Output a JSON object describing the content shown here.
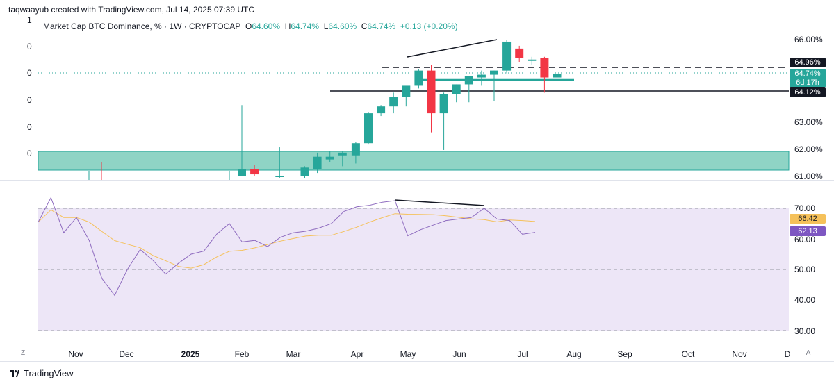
{
  "header": {
    "text": "taqwaayub created with TradingView.com, Jul 14, 2025 07:39 UTC"
  },
  "legend": {
    "symbol": "Market Cap BTC Dominance, % · 1W · CRYPTOCAP",
    "o_label": "O",
    "o_value": "64.60%",
    "h_label": "H",
    "h_value": "64.74%",
    "l_label": "L",
    "l_value": "64.60%",
    "c_label": "C",
    "c_value": "64.74%",
    "change": "+0.13 (+0.20%)"
  },
  "left_scale": [
    "1",
    "0",
    "0",
    "0",
    "0",
    "0"
  ],
  "price_axis": [
    "66.00%",
    "63.00%",
    "62.00%",
    "61.00%"
  ],
  "price_badges": {
    "level_high": "64.96%",
    "last": "64.74%",
    "countdown": "6d 17h",
    "level_low": "64.12%"
  },
  "rsi_axis": [
    "70.00",
    "60.00",
    "50.00",
    "40.00",
    "30.00"
  ],
  "rsi_badges": {
    "ma": "66.42",
    "rsi": "62.13"
  },
  "time_axis": [
    "Nov",
    "Dec",
    "2025",
    "Feb",
    "Mar",
    "Apr",
    "May",
    "Jun",
    "Jul",
    "Aug",
    "Sep",
    "Oct",
    "Nov",
    "D"
  ],
  "corner_buttons": {
    "left": "Z",
    "right": "A"
  },
  "footer": {
    "brand": "TradingView"
  },
  "colors": {
    "up": "#26a69a",
    "down": "#f23645",
    "zone": "#8fd4c5",
    "rsi_line": "#8e6bbf",
    "rsi_ma": "#f5c15a",
    "rsi_bg": "#ede6f7",
    "badge_dark": "#131722",
    "badge_ma": "#f5c15a",
    "badge_rsi": "#7e57c2"
  },
  "chart_data": {
    "type": "candlestick",
    "interval": "1W",
    "note_series": "weekly candles, BTC dominance %",
    "candles": [
      {
        "date": "2025-01-27",
        "o": 61.0,
        "h": 63.6,
        "l": 61.0,
        "c": 61.25
      },
      {
        "date": "2025-02-03",
        "o": 61.25,
        "h": 61.4,
        "l": 61.0,
        "c": 61.05
      },
      {
        "date": "2025-02-17",
        "o": 61.0,
        "h": 62.05,
        "l": 60.95,
        "c": 61.0
      },
      {
        "date": "2025-03-03",
        "o": 61.0,
        "h": 61.35,
        "l": 60.95,
        "c": 61.3
      },
      {
        "date": "2025-03-10",
        "o": 61.25,
        "h": 61.85,
        "l": 61.1,
        "c": 61.7
      },
      {
        "date": "2025-03-17",
        "o": 61.6,
        "h": 61.9,
        "l": 61.5,
        "c": 61.7
      },
      {
        "date": "2025-03-24",
        "o": 61.75,
        "h": 61.9,
        "l": 61.35,
        "c": 61.85
      },
      {
        "date": "2025-03-31",
        "o": 61.75,
        "h": 62.25,
        "l": 61.45,
        "c": 62.2
      },
      {
        "date": "2025-04-07",
        "o": 62.2,
        "h": 63.35,
        "l": 62.15,
        "c": 63.3
      },
      {
        "date": "2025-04-14",
        "o": 63.3,
        "h": 63.6,
        "l": 63.2,
        "c": 63.55
      },
      {
        "date": "2025-04-21",
        "o": 63.55,
        "h": 64.05,
        "l": 63.3,
        "c": 63.9
      },
      {
        "date": "2025-04-28",
        "o": 63.9,
        "h": 64.25,
        "l": 63.55,
        "c": 64.3
      },
      {
        "date": "2025-05-05",
        "o": 64.3,
        "h": 64.9,
        "l": 64.2,
        "c": 64.85
      },
      {
        "date": "2025-05-12",
        "o": 64.85,
        "h": 65.05,
        "l": 62.6,
        "c": 63.3
      },
      {
        "date": "2025-05-19",
        "o": 63.3,
        "h": 64.05,
        "l": 61.95,
        "c": 64.0
      },
      {
        "date": "2025-05-26",
        "o": 64.0,
        "h": 64.35,
        "l": 63.7,
        "c": 64.35
      },
      {
        "date": "2025-06-02",
        "o": 64.35,
        "h": 64.65,
        "l": 63.7,
        "c": 64.65
      },
      {
        "date": "2025-06-09",
        "o": 64.6,
        "h": 64.85,
        "l": 64.3,
        "c": 64.7
      },
      {
        "date": "2025-06-16",
        "o": 64.7,
        "h": 64.85,
        "l": 63.75,
        "c": 64.85
      },
      {
        "date": "2025-06-23",
        "o": 64.85,
        "h": 65.95,
        "l": 64.75,
        "c": 65.9
      },
      {
        "date": "2025-06-30",
        "o": 65.65,
        "h": 65.75,
        "l": 65.15,
        "c": 65.3
      },
      {
        "date": "2025-07-07",
        "o": 65.25,
        "h": 65.35,
        "l": 65.05,
        "c": 65.25
      },
      {
        "date": "2025-07-14",
        "o": 65.3,
        "h": 65.35,
        "l": 64.05,
        "c": 64.6
      },
      {
        "date": "2025-07-21",
        "o": 64.6,
        "h": 64.74,
        "l": 64.6,
        "c": 64.74
      }
    ],
    "horizontal_levels": [
      64.96,
      64.12
    ],
    "y_axis_labels": [
      "66.00%",
      "63.00%",
      "62.00%",
      "61.00%"
    ],
    "rsi": {
      "values": [
        65.5,
        73.5,
        62,
        67,
        59.5,
        47,
        41.5,
        50,
        56.5,
        53,
        48.5,
        52,
        55,
        56,
        61.5,
        65,
        59,
        59.5,
        57.5,
        60.5,
        62,
        62.5,
        63.5,
        65,
        69,
        70.5,
        71,
        72,
        72.5,
        61,
        63,
        64.5,
        66,
        66.5,
        67,
        70,
        66.5,
        66,
        61.5,
        62.13
      ],
      "ma_last": 66.42,
      "rsi_last": 62.13,
      "bands": [
        70,
        50,
        30
      ],
      "y_axis_labels": [
        "70.00",
        "60.00",
        "50.00",
        "40.00",
        "30.00"
      ]
    }
  }
}
